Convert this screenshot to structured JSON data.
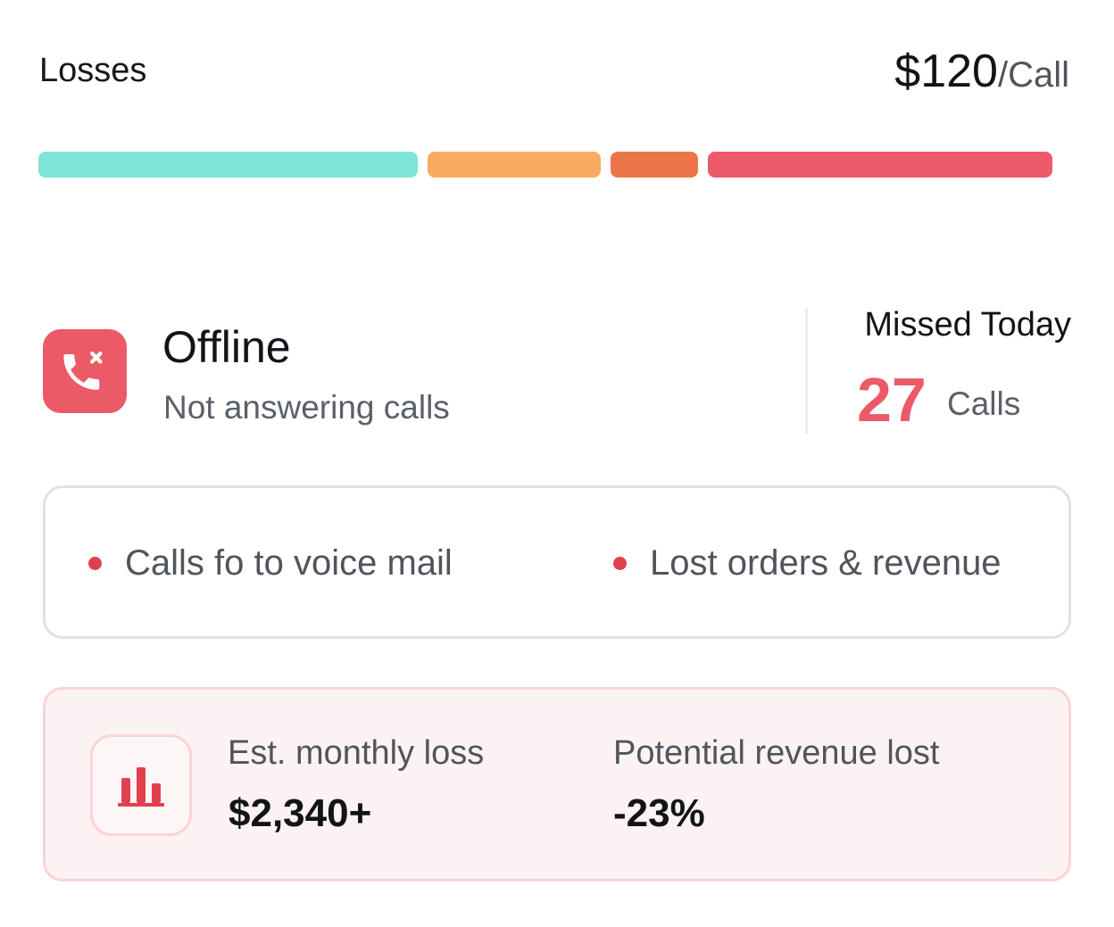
{
  "header": {
    "title": "Losses",
    "price_amount": "$120",
    "price_unit": "/Call"
  },
  "loss_bar": {
    "segments": [
      {
        "name": "teal",
        "color": "#7de5d6",
        "share": 0.378
      },
      {
        "name": "light-orange",
        "color": "#f8ac62",
        "share": 0.172
      },
      {
        "name": "dark-orange",
        "color": "#ee744a",
        "share": 0.087
      },
      {
        "name": "red",
        "color": "#ed5a6a",
        "share": 0.343
      }
    ]
  },
  "status": {
    "icon": "phone-missed-icon",
    "title": "Offline",
    "subtitle": "Not answering calls",
    "accent_color": "#eb5a66"
  },
  "missed": {
    "label": "Missed Today",
    "count": "27",
    "unit": "Calls"
  },
  "impacts": [
    {
      "text": "Calls fo to voice mail"
    },
    {
      "text": "Lost orders & revenue"
    }
  ],
  "loss_card": {
    "icon": "bar-chart-icon",
    "metrics": [
      {
        "label": "Est. monthly loss",
        "value": "$2,340+"
      },
      {
        "label": "Potential revenue lost",
        "value": "-23%"
      }
    ]
  }
}
